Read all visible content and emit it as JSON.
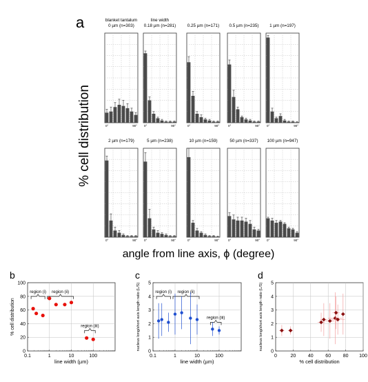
{
  "panel_letters": {
    "a": "a",
    "b": "b",
    "c": "c",
    "d": "d"
  },
  "colors": {
    "bar": "#4a4a4a",
    "grid": "#c0c0c0",
    "red": "#e8120c",
    "blue": "#1f4fd0",
    "darkred": "#8b1010",
    "errbar_red": "#f2a0a0"
  },
  "chart_data": [
    {
      "type": "bar",
      "panel": "a",
      "ylabel": "% cell distribution",
      "xlabel": "angle from line axis, ϕ (degree)",
      "ylim": [
        0,
        80
      ],
      "tick_left": "0°",
      "tick_right": "90°",
      "grid": true,
      "subplots": [
        {
          "title1": "blanket tantalum",
          "title2": "0 µm (n=303)",
          "values": [
            9,
            10,
            14,
            16,
            15,
            13,
            10,
            7
          ],
          "errors": [
            3,
            4,
            4,
            5,
            5,
            4,
            3,
            2
          ]
        },
        {
          "title1": "line width",
          "title2": "0.18 µm (n=281)",
          "values": [
            62,
            20,
            8,
            4,
            2,
            1,
            1,
            1
          ],
          "errors": [
            2,
            3,
            2,
            1,
            1,
            0.5,
            0.5,
            0.5
          ]
        },
        {
          "title1": "",
          "title2": "0.25 µm (n=171)",
          "values": [
            54,
            24,
            8,
            5,
            3,
            2,
            1,
            1
          ],
          "errors": [
            5,
            4,
            2,
            2,
            1,
            1,
            0.5,
            0.5
          ]
        },
        {
          "title1": "",
          "title2": "0.5 µm (n=235)",
          "values": [
            52,
            23,
            12,
            5,
            3,
            2,
            1,
            1
          ],
          "errors": [
            4,
            6,
            2,
            1,
            1,
            1,
            0.5,
            0.5
          ]
        },
        {
          "title1": "",
          "title2": "1 µm (n=197)",
          "values": [
            76,
            10,
            4,
            6,
            2,
            1,
            1,
            0.5
          ],
          "errors": [
            2,
            3,
            1,
            2,
            1,
            0.5,
            0.5,
            0.5
          ]
        },
        {
          "title1": "",
          "title2": "2 µm (n=179)",
          "values": [
            69,
            15,
            6,
            4,
            2,
            1,
            1,
            1
          ],
          "errors": [
            4,
            6,
            3,
            2,
            1,
            0.5,
            0.5,
            0.5
          ]
        },
        {
          "title1": "",
          "title2": "5 µm (n=238)",
          "values": [
            68,
            17,
            7,
            4,
            3,
            2,
            1,
            1
          ],
          "errors": [
            8,
            8,
            2,
            2,
            1,
            1,
            0.5,
            0.5
          ]
        },
        {
          "title1": "",
          "title2": "10 µm (n=159)",
          "values": [
            72,
            13,
            6,
            4,
            2,
            1,
            1,
            0.5
          ],
          "errors": [
            8,
            2,
            2,
            1,
            1,
            0.5,
            0.5,
            0.5
          ]
        },
        {
          "title1": "",
          "title2": "50 µm (n=337)",
          "values": [
            19,
            16,
            15,
            15,
            14,
            12,
            7,
            6
          ],
          "errors": [
            3,
            4,
            3,
            3,
            3,
            3,
            2,
            1
          ]
        },
        {
          "title1": "",
          "title2": "100 µm (n=947)",
          "values": [
            17,
            15,
            13,
            14,
            12,
            8,
            7,
            4
          ],
          "errors": [
            1,
            2,
            2,
            1,
            1,
            1,
            1,
            1
          ]
        }
      ]
    },
    {
      "type": "scatter",
      "panel": "b",
      "xlabel": "line width (µm)",
      "ylabel": "% cell distribution",
      "xscale": "log",
      "xlim": [
        0.1,
        1000
      ],
      "ylim": [
        0,
        100
      ],
      "xticks": [
        0.1,
        1,
        10,
        100
      ],
      "xtick_labels": [
        "0.1",
        "1",
        "10",
        "100"
      ],
      "yticks": [
        0,
        20,
        40,
        60,
        80,
        100
      ],
      "ytick_labels": [
        "0",
        "20",
        "40",
        "60",
        "80",
        "100"
      ],
      "points": [
        {
          "x": 0.18,
          "y": 62
        },
        {
          "x": 0.25,
          "y": 55
        },
        {
          "x": 0.5,
          "y": 52
        },
        {
          "x": 1,
          "y": 77
        },
        {
          "x": 2,
          "y": 68
        },
        {
          "x": 5,
          "y": 68
        },
        {
          "x": 10,
          "y": 71
        },
        {
          "x": 50,
          "y": 19
        },
        {
          "x": 100,
          "y": 17
        }
      ],
      "regions": [
        {
          "label": "region (i)",
          "x1": 0.18,
          "x2": 0.5,
          "y": 80
        },
        {
          "label": "region (ii)",
          "x1": 1,
          "x2": 10,
          "y": 80
        },
        {
          "label": "region (iii)",
          "x1": 50,
          "x2": 100,
          "y": 30
        }
      ]
    },
    {
      "type": "scatter",
      "panel": "c",
      "xlabel": "line width (µm)",
      "ylabel": "nucleus long/short axis length ratio (L/S)",
      "xscale": "log",
      "xlim": [
        0.1,
        1000
      ],
      "ylim": [
        0,
        5
      ],
      "xticks": [
        0.1,
        1,
        10,
        100
      ],
      "xtick_labels": [
        "0.1",
        "1",
        "10",
        "100"
      ],
      "yticks": [
        0,
        1,
        2,
        3,
        4,
        5
      ],
      "ytick_labels": [
        "0",
        "1",
        "2",
        "3",
        "4",
        "5"
      ],
      "points": [
        {
          "x": 0.18,
          "y": 2.2,
          "err": 1.3
        },
        {
          "x": 0.25,
          "y": 2.3,
          "err": 1.2
        },
        {
          "x": 0.5,
          "y": 2.1,
          "err": 0.7
        },
        {
          "x": 1,
          "y": 2.7,
          "err": 1.5
        },
        {
          "x": 2,
          "y": 2.8,
          "err": 1.2
        },
        {
          "x": 5,
          "y": 2.4,
          "err": 1.9
        },
        {
          "x": 10,
          "y": 2.3,
          "err": 1.1
        },
        {
          "x": 50,
          "y": 1.6,
          "err": 0.5
        },
        {
          "x": 100,
          "y": 1.5,
          "err": 0.3
        }
      ],
      "regions": [
        {
          "label": "region (i)",
          "x1": 0.18,
          "x2": 0.5,
          "y": 4.0
        },
        {
          "label": "region (ii)",
          "x1": 1,
          "x2": 10,
          "y": 4.0
        },
        {
          "label": "region (iii)",
          "x1": 50,
          "x2": 100,
          "y": 2.1
        }
      ]
    },
    {
      "type": "scatter",
      "panel": "d",
      "xlabel": "% cell distribution",
      "ylabel": "nucleus long/short axis length ratio (L/S)",
      "xlim": [
        0,
        100
      ],
      "ylim": [
        0,
        5
      ],
      "xticks": [
        0,
        20,
        40,
        60,
        80,
        100
      ],
      "xtick_labels": [
        "0",
        "20",
        "40",
        "60",
        "80",
        "100"
      ],
      "yticks": [
        0,
        1,
        2,
        3,
        4,
        5
      ],
      "ytick_labels": [
        "0",
        "1",
        "2",
        "3",
        "4",
        "5"
      ],
      "points": [
        {
          "x": 7,
          "y": 1.5,
          "xerr": 3,
          "yerr": 0.4
        },
        {
          "x": 17,
          "y": 1.5,
          "xerr": 3,
          "yerr": 0.3
        },
        {
          "x": 52,
          "y": 2.1,
          "xerr": 4,
          "yerr": 0.7
        },
        {
          "x": 55,
          "y": 2.3,
          "xerr": 4,
          "yerr": 1.2
        },
        {
          "x": 62,
          "y": 2.2,
          "xerr": 5,
          "yerr": 1.3
        },
        {
          "x": 68,
          "y": 2.4,
          "xerr": 8,
          "yerr": 1.9
        },
        {
          "x": 69,
          "y": 2.8,
          "xerr": 4,
          "yerr": 1.2
        },
        {
          "x": 71,
          "y": 2.3,
          "xerr": 8,
          "yerr": 1.1
        },
        {
          "x": 77,
          "y": 2.7,
          "xerr": 2,
          "yerr": 1.5
        }
      ]
    }
  ]
}
